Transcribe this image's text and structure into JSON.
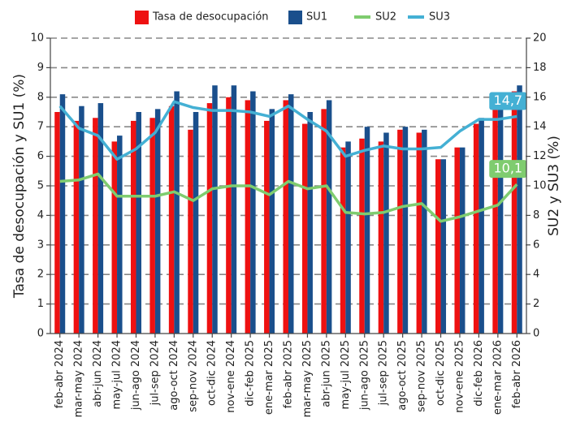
{
  "chart_data": {
    "type": "bar-line",
    "y_label": "Tasa de desocupación y SU1 (%)",
    "y2_label": "SU2 y SU3 (%)",
    "categories": [
      "feb-abr 2024",
      "mar-may 2024",
      "abr-jun 2024",
      "may-jul 2024",
      "jun-ago 2024",
      "jul-sep 2024",
      "ago-oct 2024",
      "sep-nov 2024",
      "oct-dic 2024",
      "nov-ene 2024",
      "dic-feb 2025",
      "ene-mar 2025",
      "feb-abr 2025",
      "mar-may 2025",
      "abr-jun 2025",
      "may-jul 2025",
      "jun-ago 2025",
      "jul-sep 2025",
      "ago-oct 2025",
      "sep-nov 2025",
      "oct-dic 2025",
      "nov-ene 2025",
      "dic-feb 2026",
      "ene-mar 2026",
      "feb-abr 2026"
    ],
    "series": [
      {
        "name": "Tasa de desocupación",
        "type": "bar",
        "color": "#ee1111",
        "values": [
          7.5,
          7.2,
          7.3,
          6.5,
          7.2,
          7.3,
          7.7,
          6.9,
          7.8,
          8.0,
          7.9,
          7.2,
          7.9,
          7.1,
          7.6,
          6.3,
          6.6,
          6.5,
          6.9,
          6.8,
          5.9,
          6.3,
          7.1,
          7.6,
          8.2
        ]
      },
      {
        "name": "SU1",
        "type": "bar",
        "color": "#1a4f8c",
        "values": [
          8.1,
          7.7,
          7.8,
          6.7,
          7.5,
          7.6,
          8.2,
          7.5,
          8.4,
          8.4,
          8.2,
          7.6,
          8.1,
          7.5,
          7.9,
          6.5,
          7.0,
          6.8,
          7.0,
          6.9,
          5.9,
          6.3,
          7.3,
          7.9,
          8.4
        ]
      },
      {
        "name": "SU2",
        "type": "line",
        "axis": "y2",
        "color": "#7fcc6f",
        "values": [
          10.3,
          10.4,
          10.8,
          9.3,
          9.3,
          9.3,
          9.6,
          9.0,
          9.8,
          10.0,
          10.0,
          9.4,
          10.3,
          9.8,
          10.0,
          8.2,
          8.1,
          8.2,
          8.6,
          8.8,
          7.6,
          7.9,
          8.3,
          8.7,
          10.1
        ],
        "end_label": "10,1"
      },
      {
        "name": "SU3",
        "type": "line",
        "axis": "y2",
        "color": "#44b0d4",
        "values": [
          15.4,
          13.9,
          13.4,
          11.8,
          12.5,
          13.6,
          15.7,
          15.3,
          15.1,
          15.1,
          15.0,
          14.7,
          15.4,
          14.5,
          13.7,
          12.0,
          12.4,
          12.7,
          12.5,
          12.5,
          12.6,
          13.7,
          14.5,
          14.5,
          14.7
        ],
        "end_label": "14,7"
      }
    ],
    "ylim": [
      0,
      10
    ],
    "yticks": [
      0,
      1,
      2,
      3,
      4,
      5,
      6,
      7,
      8,
      9,
      10
    ],
    "y2lim": [
      0,
      20
    ],
    "y2ticks": [
      0,
      2,
      4,
      6,
      8,
      10,
      12,
      14,
      16,
      18,
      20
    ],
    "grid": true
  }
}
